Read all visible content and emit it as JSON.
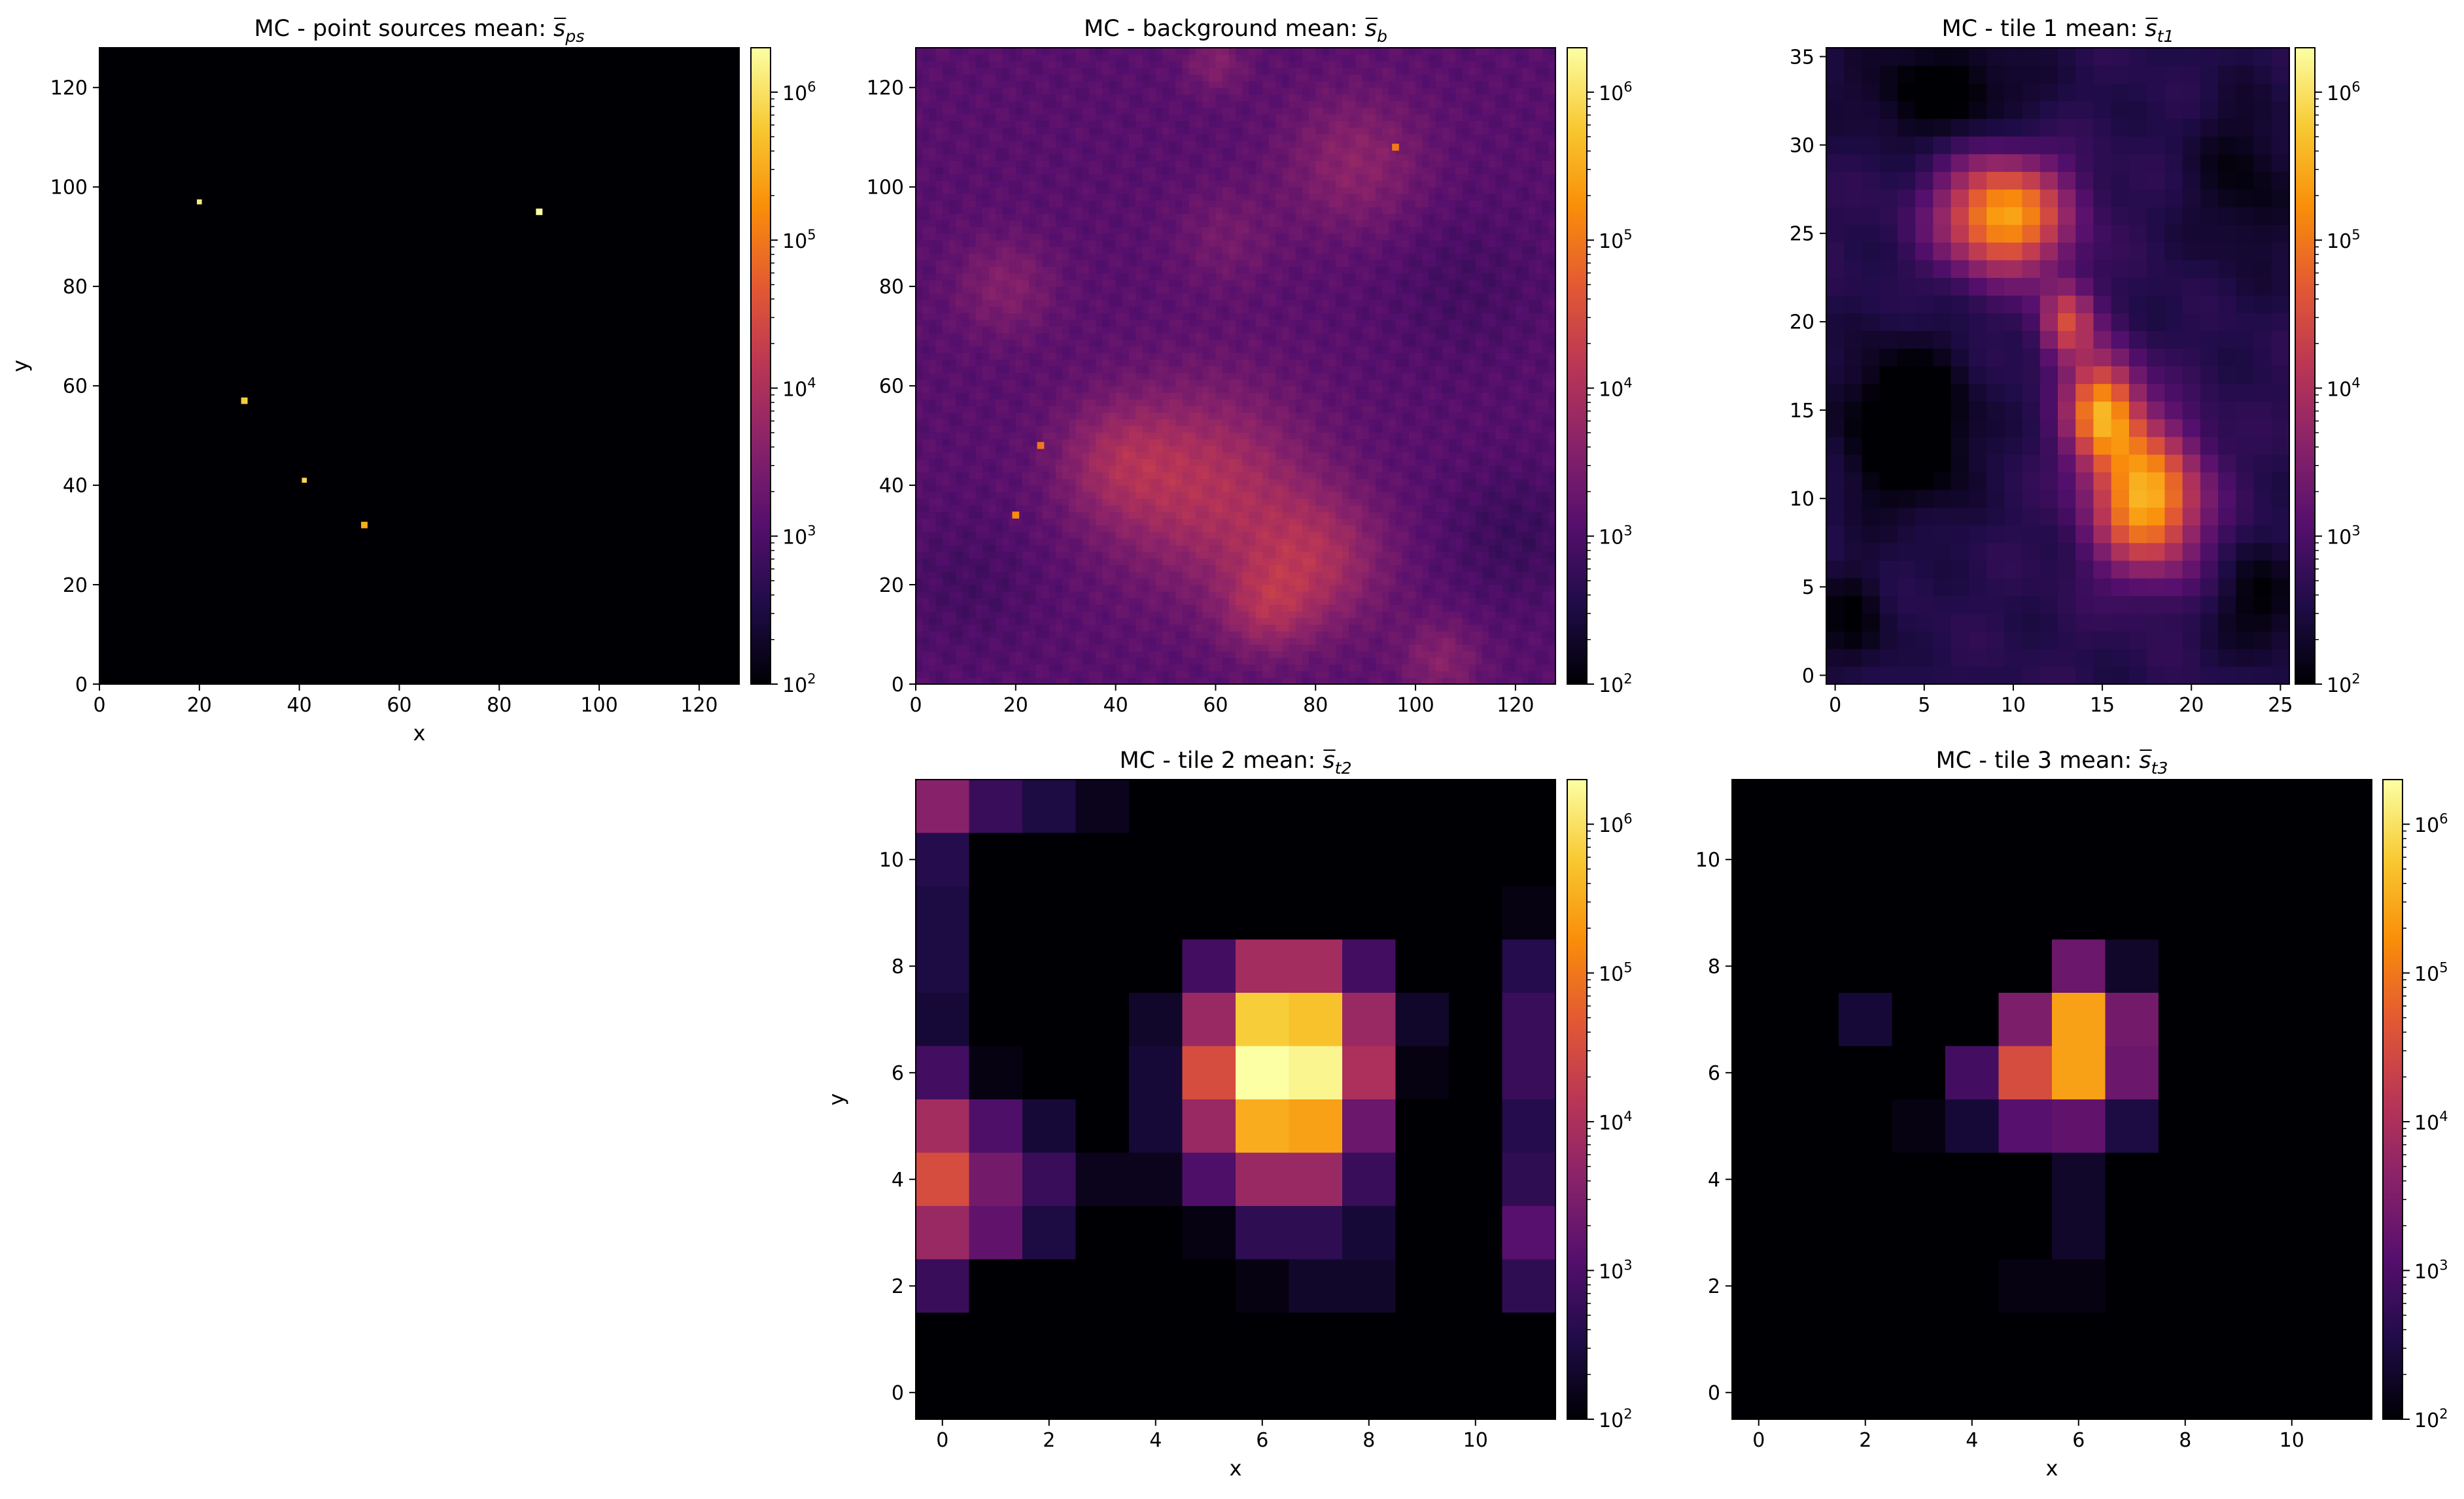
{
  "colors": {
    "colormap": "inferno",
    "stops": [
      "#000004",
      "#1f0c48",
      "#550f6d",
      "#88226a",
      "#ba3655",
      "#e35933",
      "#f98e09",
      "#f8c932",
      "#fcffa4"
    ]
  },
  "chart_data": [
    {
      "id": "ps",
      "type": "heatmap",
      "title_text": "MC - point sources mean: ",
      "title_math": {
        "base": "s",
        "sub": "ps"
      },
      "xlabel": "x",
      "ylabel": "y",
      "xlim": [
        0,
        128
      ],
      "ylim": [
        0,
        128
      ],
      "xticks": [
        "0",
        "20",
        "40",
        "60",
        "80",
        "100",
        "120"
      ],
      "yticks": [
        "0",
        "20",
        "40",
        "60",
        "80",
        "100",
        "120"
      ],
      "background_log10": 2.0,
      "points": [
        {
          "x": 20,
          "y": 97,
          "size": 1,
          "log10": 6.1
        },
        {
          "x": 88,
          "y": 95,
          "size": 1.3,
          "log10": 6.3
        },
        {
          "x": 29,
          "y": 57,
          "size": 1.3,
          "log10": 5.8
        },
        {
          "x": 41,
          "y": 41,
          "size": 1,
          "log10": 5.9
        },
        {
          "x": 53,
          "y": 32,
          "size": 1.3,
          "log10": 5.5
        }
      ],
      "colorbar": {
        "scale": "log",
        "vmin_log10": 2,
        "vmax_log10": 6.3,
        "ticks": [
          "10^2",
          "10^3",
          "10^4",
          "10^5",
          "10^6"
        ]
      }
    },
    {
      "id": "bg",
      "type": "heatmap",
      "title_text": "MC - background mean: ",
      "title_math": {
        "base": "s",
        "sub": "b"
      },
      "xlabel": "",
      "ylabel": "",
      "xlim": [
        0,
        128
      ],
      "ylim": [
        0,
        128
      ],
      "xticks": [
        "0",
        "20",
        "40",
        "60",
        "80",
        "100",
        "120"
      ],
      "yticks": [
        "0",
        "20",
        "40",
        "60",
        "80",
        "100",
        "120"
      ],
      "base_log10": 3.1,
      "blobs": [
        {
          "x": 58,
          "y": 40,
          "r": 20,
          "amp": 0.9
        },
        {
          "x": 80,
          "y": 25,
          "r": 14,
          "amp": 0.8
        },
        {
          "x": 70,
          "y": 15,
          "r": 9,
          "amp": 0.6
        },
        {
          "x": 40,
          "y": 45,
          "r": 12,
          "amp": 0.55
        },
        {
          "x": 88,
          "y": 105,
          "r": 14,
          "amp": 0.55
        },
        {
          "x": 18,
          "y": 80,
          "r": 10,
          "amp": 0.45
        },
        {
          "x": 62,
          "y": 90,
          "r": 10,
          "amp": 0.3
        },
        {
          "x": 105,
          "y": 5,
          "r": 8,
          "amp": 0.5
        },
        {
          "x": 60,
          "y": 125,
          "r": 6,
          "amp": 0.45
        },
        {
          "x": 120,
          "y": 30,
          "r": 14,
          "amp": -0.3
        },
        {
          "x": 10,
          "y": 20,
          "r": 14,
          "amp": -0.2
        },
        {
          "x": 110,
          "y": 80,
          "r": 16,
          "amp": -0.2
        }
      ],
      "points": [
        {
          "x": 96,
          "y": 108,
          "log10": 5.0
        },
        {
          "x": 25,
          "y": 48,
          "log10": 5.0
        },
        {
          "x": 20,
          "y": 34,
          "log10": 5.2
        }
      ],
      "colorbar": {
        "scale": "log",
        "vmin_log10": 2,
        "vmax_log10": 6.3,
        "ticks": [
          "10^2",
          "10^3",
          "10^4",
          "10^5",
          "10^6"
        ]
      }
    },
    {
      "id": "t1",
      "type": "heatmap",
      "title_text": "MC - tile 1 mean: ",
      "title_math": {
        "base": "s",
        "sub": "t1"
      },
      "xlabel": "",
      "ylabel": "",
      "nx": 26,
      "ny": 36,
      "xticks": [
        "0",
        "5",
        "10",
        "15",
        "20",
        "25"
      ],
      "yticks": [
        "0",
        "5",
        "10",
        "15",
        "20",
        "25",
        "30",
        "35"
      ],
      "base_log10": 2.6,
      "blobs": [
        {
          "x": 9.5,
          "y": 26,
          "rx": 3.5,
          "ry": 3.2,
          "amp": 2.9
        },
        {
          "x": 17.5,
          "y": 10,
          "rx": 3.0,
          "ry": 4.0,
          "amp": 3.0
        },
        {
          "x": 15,
          "y": 15,
          "rx": 2.0,
          "ry": 3.0,
          "amp": 2.7
        },
        {
          "x": 13,
          "y": 20,
          "rx": 1.5,
          "ry": 2.2,
          "amp": 1.8
        },
        {
          "x": 4,
          "y": 14,
          "rx": 3.5,
          "ry": 4.5,
          "amp": -1.1
        },
        {
          "x": 6,
          "y": 33,
          "rx": 5,
          "ry": 3,
          "amp": -0.7
        },
        {
          "x": 23,
          "y": 28,
          "rx": 3,
          "ry": 5,
          "amp": -0.5
        },
        {
          "x": 1,
          "y": 3,
          "rx": 2,
          "ry": 3,
          "amp": -0.6
        },
        {
          "x": 24,
          "y": 4,
          "rx": 2.5,
          "ry": 3,
          "amp": -0.6
        }
      ],
      "colorbar": {
        "scale": "log",
        "vmin_log10": 2,
        "vmax_log10": 6.3,
        "ticks": [
          "10^2",
          "10^3",
          "10^4",
          "10^5",
          "10^6"
        ]
      }
    },
    {
      "id": "t2",
      "type": "heatmap",
      "title_text": "MC - tile 2 mean: ",
      "title_math": {
        "base": "s",
        "sub": "t2"
      },
      "xlabel": "x",
      "ylabel": "y",
      "nx": 12,
      "ny": 12,
      "xticks": [
        "0",
        "2",
        "4",
        "6",
        "8",
        "10"
      ],
      "yticks": [
        "0",
        "2",
        "4",
        "6",
        "8",
        "10"
      ],
      "grid_rows_top_to_bottom": [
        [
          3.6,
          2.8,
          2.5,
          2.2,
          2.0,
          2.0,
          2.0,
          2.0,
          2.0,
          2.0,
          2.0,
          2.0
        ],
        [
          2.6,
          2.0,
          2.0,
          2.0,
          2.0,
          2.0,
          2.0,
          2.0,
          2.0,
          2.0,
          2.0,
          2.0
        ],
        [
          2.5,
          2.0,
          2.0,
          2.0,
          2.0,
          2.0,
          2.0,
          2.0,
          2.0,
          2.0,
          2.0,
          2.1
        ],
        [
          2.5,
          2.0,
          2.0,
          2.0,
          2.0,
          2.9,
          3.9,
          3.9,
          2.9,
          2.0,
          2.0,
          2.6
        ],
        [
          2.4,
          2.0,
          2.0,
          2.0,
          2.3,
          3.8,
          5.8,
          5.7,
          3.8,
          2.3,
          2.0,
          2.8
        ],
        [
          2.9,
          2.1,
          2.0,
          2.0,
          2.4,
          4.5,
          6.3,
          6.2,
          4.0,
          2.1,
          2.0,
          2.8
        ],
        [
          3.9,
          3.0,
          2.4,
          2.0,
          2.4,
          3.8,
          5.5,
          5.4,
          3.3,
          2.0,
          2.0,
          2.6
        ],
        [
          4.5,
          3.4,
          2.8,
          2.2,
          2.2,
          3.0,
          3.8,
          3.8,
          2.8,
          2.0,
          2.0,
          2.7
        ],
        [
          3.8,
          3.2,
          2.5,
          2.0,
          2.0,
          2.1,
          2.7,
          2.7,
          2.4,
          2.0,
          2.0,
          3.1
        ],
        [
          2.8,
          2.0,
          2.0,
          2.0,
          2.0,
          2.0,
          2.1,
          2.3,
          2.3,
          2.0,
          2.0,
          2.7
        ],
        [
          2.0,
          2.0,
          2.0,
          2.0,
          2.0,
          2.0,
          2.0,
          2.0,
          2.0,
          2.0,
          2.0,
          2.0
        ],
        [
          2.0,
          2.0,
          2.0,
          2.0,
          2.0,
          2.0,
          2.0,
          2.0,
          2.0,
          2.0,
          2.0,
          2.0
        ]
      ],
      "colorbar": {
        "scale": "log",
        "vmin_log10": 2,
        "vmax_log10": 6.3,
        "ticks": [
          "10^2",
          "10^3",
          "10^4",
          "10^5",
          "10^6"
        ]
      }
    },
    {
      "id": "t3",
      "type": "heatmap",
      "title_text": "MC - tile 3 mean: ",
      "title_math": {
        "base": "s",
        "sub": "t3"
      },
      "xlabel": "x",
      "ylabel": "",
      "nx": 12,
      "ny": 12,
      "xticks": [
        "0",
        "2",
        "4",
        "6",
        "8",
        "10"
      ],
      "yticks": [
        "0",
        "2",
        "4",
        "6",
        "8",
        "10"
      ],
      "grid_rows_top_to_bottom": [
        [
          2.0,
          2.0,
          2.0,
          2.0,
          2.0,
          2.0,
          2.0,
          2.0,
          2.0,
          2.0,
          2.0,
          2.0
        ],
        [
          2.0,
          2.0,
          2.0,
          2.0,
          2.0,
          2.0,
          2.0,
          2.0,
          2.0,
          2.0,
          2.0,
          2.0
        ],
        [
          2.0,
          2.0,
          2.0,
          2.0,
          2.0,
          2.0,
          2.0,
          2.0,
          2.0,
          2.0,
          2.0,
          2.0
        ],
        [
          2.0,
          2.0,
          2.0,
          2.0,
          2.0,
          2.0,
          3.3,
          2.3,
          2.0,
          2.0,
          2.0,
          2.0
        ],
        [
          2.0,
          2.0,
          2.4,
          2.0,
          2.0,
          3.5,
          5.4,
          3.4,
          2.0,
          2.0,
          2.0,
          2.0
        ],
        [
          2.0,
          2.0,
          2.0,
          2.0,
          2.9,
          4.5,
          5.4,
          3.3,
          2.0,
          2.0,
          2.0,
          2.0
        ],
        [
          2.0,
          2.0,
          2.0,
          2.1,
          2.4,
          3.1,
          3.2,
          2.5,
          2.0,
          2.0,
          2.0,
          2.0
        ],
        [
          2.0,
          2.0,
          2.0,
          2.0,
          2.0,
          2.0,
          2.3,
          2.0,
          2.0,
          2.0,
          2.0,
          2.0
        ],
        [
          2.0,
          2.0,
          2.0,
          2.0,
          2.0,
          2.0,
          2.3,
          2.0,
          2.0,
          2.0,
          2.0,
          2.0
        ],
        [
          2.0,
          2.0,
          2.0,
          2.0,
          2.0,
          2.1,
          2.1,
          2.0,
          2.0,
          2.0,
          2.0,
          2.0
        ],
        [
          2.0,
          2.0,
          2.0,
          2.0,
          2.0,
          2.0,
          2.0,
          2.0,
          2.0,
          2.0,
          2.0,
          2.0
        ],
        [
          2.0,
          2.0,
          2.0,
          2.0,
          2.0,
          2.0,
          2.0,
          2.0,
          2.0,
          2.0,
          2.0,
          2.0
        ]
      ],
      "colorbar": {
        "scale": "log",
        "vmin_log10": 2,
        "vmax_log10": 6.3,
        "ticks": [
          "10^2",
          "10^3",
          "10^4",
          "10^5",
          "10^6"
        ]
      }
    }
  ]
}
